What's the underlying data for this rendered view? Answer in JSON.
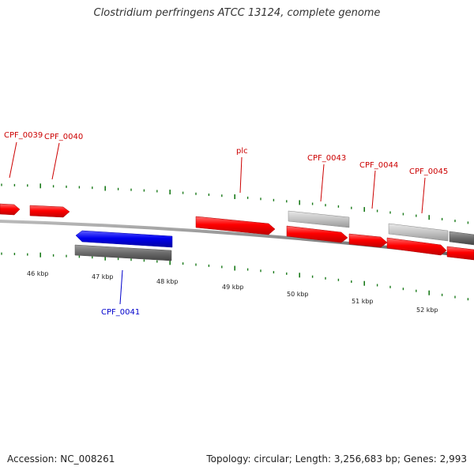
{
  "title": "Clostridium perfringens ATCC 13124, complete genome",
  "footer": {
    "accession": "Accession: NC_008261",
    "summary": "Topology: circular; Length: 3,256,683 bp; Genes: 2,993"
  },
  "colors": {
    "forward_gene": "#ff0000",
    "reverse_gene": "#0000ff",
    "label_forward": "#cc0000",
    "label_reverse": "#0000cc",
    "tick": "#1a7a1a",
    "backbone": "#888888",
    "gray_light": "#c0c0c0",
    "gray_dark": "#707070"
  },
  "scale_labels": [
    {
      "id": "46",
      "text": "46 kbp"
    },
    {
      "id": "47",
      "text": "47 kbp"
    },
    {
      "id": "48",
      "text": "48 kbp"
    },
    {
      "id": "49",
      "text": "49 kbp"
    },
    {
      "id": "50",
      "text": "50 kbp"
    },
    {
      "id": "51",
      "text": "51 kbp"
    },
    {
      "id": "52",
      "text": "52 kbp"
    }
  ],
  "gene_labels": [
    {
      "id": "cpf0039",
      "text": "CPF_0039",
      "strand": "forward"
    },
    {
      "id": "cpf0040",
      "text": "CPF_0040",
      "strand": "forward"
    },
    {
      "id": "plc",
      "text": "plc",
      "strand": "forward"
    },
    {
      "id": "cpf0043",
      "text": "CPF_0043",
      "strand": "forward"
    },
    {
      "id": "cpf0044",
      "text": "CPF_0044",
      "strand": "forward"
    },
    {
      "id": "cpf0045",
      "text": "CPF_0045",
      "strand": "forward"
    },
    {
      "id": "cpf0041",
      "text": "CPF_0041",
      "strand": "reverse"
    }
  ]
}
